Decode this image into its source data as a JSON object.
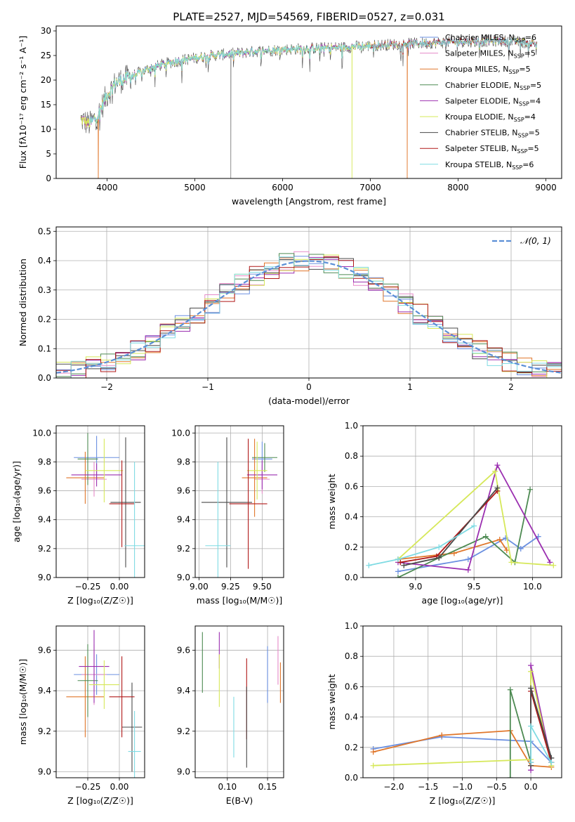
{
  "figure_title": "PLATE=2527, MJD=54569, FIBERID=0527, z=0.031",
  "colors": {
    "Chabrier MILES": "#6a8fe0",
    "Salpeter MILES": "#e58ac8",
    "Kroupa MILES": "#e0762a",
    "Chabrier ELODIE": "#4d8a52",
    "Salpeter ELODIE": "#9b2fb0",
    "Kroupa ELODIE": "#d6e85a",
    "Chabrier STELIB": "#4a4a4a",
    "Salpeter STELIB": "#b01818",
    "Kroupa STELIB": "#7fdbe3",
    "normal": "#5b8fd6"
  },
  "chart_data": [
    {
      "type": "line",
      "title": "PLATE=2527, MJD=54569, FIBERID=0527, z=0.031",
      "xlabel": "wavelength [Angstrom, rest frame]",
      "ylabel": "Flux [fλ10⁻¹⁷ erg cm⁻² s⁻¹ A⁻¹]",
      "xlim": [
        3420,
        9180
      ],
      "ylim": [
        0,
        31
      ],
      "xticks": [
        4000,
        5000,
        6000,
        7000,
        8000,
        9000
      ],
      "yticks": [
        0,
        5,
        10,
        15,
        20,
        25,
        30
      ],
      "legend_position": "right",
      "legend": [
        {
          "label": "Chabrier MILES, N",
          "sub": "SSP",
          "tail": "=6",
          "color": "#6a8fe0"
        },
        {
          "label": "Salpeter MILES, N",
          "sub": "SSP",
          "tail": "=5",
          "color": "#e58ac8"
        },
        {
          "label": "Kroupa MILES, N",
          "sub": "SSP",
          "tail": "=5",
          "color": "#e0762a"
        },
        {
          "label": "Chabrier ELODIE, N",
          "sub": "SSP",
          "tail": "=5",
          "color": "#4d8a52"
        },
        {
          "label": "Salpeter ELODIE, N",
          "sub": "SSP",
          "tail": "=4",
          "color": "#9b2fb0"
        },
        {
          "label": "Kroupa ELODIE, N",
          "sub": "SSP",
          "tail": "=4",
          "color": "#d6e85a"
        },
        {
          "label": "Chabrier STELIB, N",
          "sub": "SSP",
          "tail": "=5",
          "color": "#4a4a4a"
        },
        {
          "label": "Salpeter STELIB, N",
          "sub": "SSP",
          "tail": "=5",
          "color": "#b01818"
        },
        {
          "label": "Kroupa STELIB, N",
          "sub": "SSP",
          "tail": "=6",
          "color": "#7fdbe3"
        }
      ],
      "continuum": {
        "x": [
          3700,
          3800,
          3900,
          4000,
          4100,
          4300,
          4500,
          4700,
          4900,
          5200,
          5500,
          5800,
          6100,
          6400,
          6700,
          7000,
          7300,
          7600,
          8000,
          8500,
          8900
        ],
        "y": [
          12,
          11,
          13,
          17,
          19.5,
          21,
          22.5,
          23.5,
          24.2,
          25,
          25.5,
          26,
          26.3,
          26.5,
          26.7,
          27,
          27.3,
          27.5,
          27.8,
          28,
          27.5
        ]
      },
      "dropouts": [
        {
          "x": 3900,
          "series": "Kroupa MILES"
        },
        {
          "x": 5410,
          "series": "Chabrier STELIB"
        },
        {
          "x": 6790,
          "series": "Kroupa ELODIE"
        },
        {
          "x": 7420,
          "series": "Kroupa MILES"
        }
      ]
    },
    {
      "type": "histogram",
      "xlabel": "(data-model)/error",
      "ylabel": "Normed distribution",
      "xlim": [
        -2.5,
        2.5
      ],
      "ylim": [
        0,
        0.515
      ],
      "xticks": [
        -2,
        -1,
        0,
        1,
        2
      ],
      "yticks": [
        0.0,
        0.1,
        0.2,
        0.3,
        0.4,
        0.5
      ],
      "legend_label": "𝒩(0, 1)",
      "legend_position": "top-right",
      "bins": 34
    },
    {
      "type": "errorbar",
      "xlabel": "Z [log₁₀(Z/Z☉)]",
      "ylabel": "age  [log₁₀(age/yr)]",
      "xlim": [
        -0.5,
        0.2
      ],
      "ylim": [
        9.0,
        10.05
      ],
      "xticks": [
        -0.25,
        0.0
      ],
      "xticklabels": [
        "−0.25",
        "0.00"
      ],
      "yticks": [
        9.0,
        9.2,
        9.4,
        9.6,
        9.8,
        10.0
      ],
      "points": [
        {
          "series": "Chabrier MILES",
          "x": -0.18,
          "xerr": 0.18,
          "y": 9.83,
          "yerr": 0.15
        },
        {
          "series": "Salpeter MILES",
          "x": -0.2,
          "xerr": 0.1,
          "y": 9.68,
          "yerr": 0.12
        },
        {
          "series": "Kroupa MILES",
          "x": -0.27,
          "xerr": 0.15,
          "y": 9.69,
          "yerr": 0.18
        },
        {
          "series": "Chabrier ELODIE",
          "x": -0.25,
          "xerr": 0.08,
          "y": 9.82,
          "yerr": 0.18
        },
        {
          "series": "Salpeter ELODIE",
          "x": -0.18,
          "xerr": 0.2,
          "y": 9.71,
          "yerr": 0.08
        },
        {
          "series": "Kroupa ELODIE",
          "x": -0.12,
          "xerr": 0.15,
          "y": 9.74,
          "yerr": 0.22
        },
        {
          "series": "Chabrier STELIB",
          "x": 0.05,
          "xerr": 0.12,
          "y": 9.52,
          "yerr": 0.45
        },
        {
          "series": "Salpeter STELIB",
          "x": 0.02,
          "xerr": 0.1,
          "y": 9.51,
          "yerr": 0.3
        },
        {
          "series": "Kroupa STELIB",
          "x": 0.12,
          "xerr": 0.08,
          "y": 9.22,
          "yerr": 0.58
        }
      ]
    },
    {
      "type": "errorbar",
      "xlabel": "mass [log₁₀(M/M☉)]",
      "ylabel": "",
      "xlim": [
        8.97,
        9.67
      ],
      "ylim": [
        9.0,
        10.05
      ],
      "xticks": [
        9.0,
        9.25,
        9.5
      ],
      "xticklabels": [
        "9.00",
        "9.25",
        "9.50"
      ],
      "yticks": [
        9.0,
        9.2,
        9.4,
        9.6,
        9.8,
        10.0
      ],
      "points": [
        {
          "series": "Chabrier MILES",
          "x": 9.5,
          "xerr": 0.08,
          "y": 9.82,
          "yerr": 0.12
        },
        {
          "series": "Salpeter MILES",
          "x": 9.5,
          "xerr": 0.06,
          "y": 9.68,
          "yerr": 0.1
        },
        {
          "series": "Kroupa MILES",
          "x": 9.44,
          "xerr": 0.1,
          "y": 9.69,
          "yerr": 0.27
        },
        {
          "series": "Chabrier ELODIE",
          "x": 9.52,
          "xerr": 0.1,
          "y": 9.83,
          "yerr": 0.1
        },
        {
          "series": "Salpeter ELODIE",
          "x": 9.5,
          "xerr": 0.12,
          "y": 9.71,
          "yerr": 0.1
        },
        {
          "series": "Kroupa ELODIE",
          "x": 9.46,
          "xerr": 0.08,
          "y": 9.74,
          "yerr": 0.2
        },
        {
          "series": "Chabrier STELIB",
          "x": 9.22,
          "xerr": 0.2,
          "y": 9.52,
          "yerr": 0.45
        },
        {
          "series": "Salpeter STELIB",
          "x": 9.39,
          "xerr": 0.15,
          "y": 9.51,
          "yerr": 0.45
        },
        {
          "series": "Kroupa STELIB",
          "x": 9.15,
          "xerr": 0.1,
          "y": 9.22,
          "yerr": 0.58
        }
      ]
    },
    {
      "type": "line",
      "xlabel": "age  [log₁₀(age/yr)]",
      "ylabel": "mass weight",
      "xlim": [
        8.55,
        10.25
      ],
      "ylim": [
        0,
        1.0
      ],
      "xticks": [
        9.0,
        9.5,
        10.0
      ],
      "xticklabels": [
        "9.0",
        "9.5",
        "10.0"
      ],
      "yticks": [
        0.0,
        0.2,
        0.4,
        0.6,
        0.8,
        1.0
      ],
      "series": [
        {
          "name": "Chabrier MILES",
          "x": [
            8.85,
            9.45,
            9.77,
            9.9,
            10.05
          ],
          "y": [
            0.04,
            0.12,
            0.26,
            0.19,
            0.27
          ]
        },
        {
          "name": "Kroupa MILES",
          "x": [
            8.85,
            9.33,
            9.72,
            9.78
          ],
          "y": [
            0.12,
            0.16,
            0.25,
            0.18
          ]
        },
        {
          "name": "Chabrier ELODIE",
          "x": [
            8.85,
            9.2,
            9.6,
            9.85,
            9.98
          ],
          "y": [
            0.0,
            0.13,
            0.27,
            0.1,
            0.58
          ]
        },
        {
          "name": "Salpeter ELODIE",
          "x": [
            8.85,
            9.45,
            9.7,
            10.15
          ],
          "y": [
            0.1,
            0.05,
            0.74,
            0.1
          ]
        },
        {
          "name": "Kroupa ELODIE",
          "x": [
            8.85,
            9.68,
            9.82,
            10.18
          ],
          "y": [
            0.12,
            0.7,
            0.1,
            0.08
          ]
        },
        {
          "name": "Salpeter STELIB",
          "x": [
            8.87,
            9.18,
            9.7
          ],
          "y": [
            0.1,
            0.14,
            0.57
          ]
        },
        {
          "name": "Chabrier STELIB",
          "x": [
            8.9,
            9.2,
            9.7
          ],
          "y": [
            0.08,
            0.13,
            0.59
          ]
        },
        {
          "name": "Kroupa STELIB",
          "x": [
            8.6,
            8.85,
            9.2,
            9.5
          ],
          "y": [
            0.08,
            0.12,
            0.2,
            0.34
          ]
        }
      ]
    },
    {
      "type": "errorbar",
      "xlabel": "Z [log₁₀(Z/Z☉)]",
      "ylabel": "mass [log₁₀(M/M☉)]",
      "xlim": [
        -0.5,
        0.2
      ],
      "ylim": [
        8.97,
        9.72
      ],
      "xticks": [
        -0.25,
        0.0
      ],
      "xticklabels": [
        "−0.25",
        "0.00"
      ],
      "yticks": [
        9.0,
        9.2,
        9.4,
        9.6
      ],
      "yticklabels": [
        "9.0",
        "9.2",
        "9.4",
        "9.6"
      ],
      "points": [
        {
          "series": "Chabrier MILES",
          "x": -0.18,
          "xerr": 0.18,
          "y": 9.48,
          "yerr": 0.1
        },
        {
          "series": "Salpeter MILES",
          "x": -0.2,
          "xerr": 0.1,
          "y": 9.48,
          "yerr": 0.15
        },
        {
          "series": "Kroupa MILES",
          "x": -0.27,
          "xerr": 0.15,
          "y": 9.37,
          "yerr": 0.2
        },
        {
          "series": "Chabrier ELODIE",
          "x": -0.25,
          "xerr": 0.08,
          "y": 9.45,
          "yerr": 0.18
        },
        {
          "series": "Salpeter ELODIE",
          "x": -0.2,
          "xerr": 0.12,
          "y": 9.52,
          "yerr": 0.18
        },
        {
          "series": "Kroupa ELODIE",
          "x": -0.12,
          "xerr": 0.12,
          "y": 9.43,
          "yerr": 0.12
        },
        {
          "series": "Chabrier STELIB",
          "x": 0.1,
          "xerr": 0.08,
          "y": 9.22,
          "yerr": 0.22
        },
        {
          "series": "Salpeter STELIB",
          "x": 0.02,
          "xerr": 0.1,
          "y": 9.37,
          "yerr": 0.2
        },
        {
          "series": "Kroupa STELIB",
          "x": 0.12,
          "xerr": 0.05,
          "y": 9.1,
          "yerr": 0.2
        }
      ]
    },
    {
      "type": "errorbar",
      "xlabel": "E(B-V)",
      "ylabel": "",
      "xlim": [
        0.06,
        0.17
      ],
      "ylim": [
        8.97,
        9.72
      ],
      "xticks": [
        0.1,
        0.15
      ],
      "xticklabels": [
        "0.10",
        "0.15"
      ],
      "yticks": [
        9.0,
        9.2,
        9.4,
        9.6
      ],
      "yticklabels": [
        "9.0",
        "9.2",
        "9.4",
        "9.6"
      ],
      "points": [
        {
          "series": "Chabrier ELODIE",
          "x": 0.069,
          "y": 9.54,
          "yerr": 0.15
        },
        {
          "series": "Salpeter ELODIE",
          "x": 0.09,
          "y": 9.6,
          "yerr": 0.09
        },
        {
          "series": "Kroupa ELODIE",
          "x": 0.09,
          "y": 9.45,
          "yerr": 0.13
        },
        {
          "series": "Kroupa STELIB",
          "x": 0.108,
          "y": 9.22,
          "yerr": 0.15
        },
        {
          "series": "Salpeter STELIB",
          "x": 0.124,
          "y": 9.36,
          "yerr": 0.2
        },
        {
          "series": "Chabrier STELIB",
          "x": 0.124,
          "y": 9.22,
          "yerr": 0.2
        },
        {
          "series": "Chabrier MILES",
          "x": 0.15,
          "y": 9.48,
          "yerr": 0.14
        },
        {
          "series": "Salpeter MILES",
          "x": 0.163,
          "y": 9.55,
          "yerr": 0.12
        },
        {
          "series": "Kroupa MILES",
          "x": 0.166,
          "y": 9.44,
          "yerr": 0.1
        }
      ]
    },
    {
      "type": "line",
      "xlabel": "Z [log₁₀(Z/Z☉)]",
      "ylabel": "mass weight",
      "xlim": [
        -2.45,
        0.45
      ],
      "ylim": [
        0,
        1.0
      ],
      "xticks": [
        -2.0,
        -1.5,
        -1.0,
        -0.5,
        0.0
      ],
      "xticklabels": [
        "−2.0",
        "−1.5",
        "−1.0",
        "−0.5",
        "0.0"
      ],
      "yticks": [
        0.0,
        0.2,
        0.4,
        0.6,
        0.8,
        1.0
      ],
      "series": [
        {
          "name": "Chabrier MILES",
          "x": [
            -2.3,
            -1.3,
            0.0,
            0.3
          ],
          "y": [
            0.19,
            0.27,
            0.24,
            0.1
          ]
        },
        {
          "name": "Kroupa MILES",
          "x": [
            -2.3,
            -1.3,
            -0.3,
            0.0,
            0.3
          ],
          "y": [
            0.17,
            0.28,
            0.31,
            0.08,
            0.07
          ]
        },
        {
          "name": "Chabrier ELODIE",
          "x": [
            -0.3,
            -0.3,
            0.0
          ],
          "y": [
            0.0,
            0.58,
            0.1
          ]
        },
        {
          "name": "Salpeter ELODIE",
          "x": [
            0.0,
            0.0,
            0.3
          ],
          "y": [
            0.05,
            0.74,
            0.1
          ]
        },
        {
          "name": "Kroupa ELODIE",
          "x": [
            -2.3,
            0.0,
            0.0,
            0.3
          ],
          "y": [
            0.08,
            0.12,
            0.7,
            0.08
          ]
        },
        {
          "name": "Salpeter STELIB",
          "x": [
            0.0,
            0.0,
            0.3
          ],
          "y": [
            0.1,
            0.57,
            0.1
          ]
        },
        {
          "name": "Chabrier STELIB",
          "x": [
            0.0,
            0.0,
            0.3
          ],
          "y": [
            0.08,
            0.59,
            0.13
          ]
        },
        {
          "name": "Kroupa STELIB",
          "x": [
            0.0,
            0.0,
            0.3
          ],
          "y": [
            0.1,
            0.34,
            0.1
          ]
        }
      ]
    }
  ]
}
